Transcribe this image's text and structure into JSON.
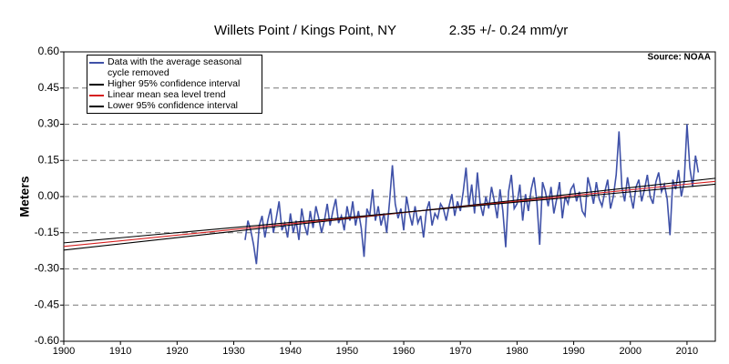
{
  "chart_data": {
    "type": "line",
    "title": "Willets Point / Kings Point, NY",
    "subtitle": "2.35 +/- 0.24 mm/yr",
    "annotation": "Source: NOAA",
    "ylabel": "Meters",
    "xlim": [
      1900,
      2015
    ],
    "xticks": [
      1900,
      1910,
      1920,
      1930,
      1940,
      1950,
      1960,
      1970,
      1980,
      1990,
      2000,
      2010
    ],
    "ylim": [
      -0.6,
      0.6
    ],
    "yticks": [
      {
        "value": -0.6,
        "label": "-0.60"
      },
      {
        "value": -0.45,
        "label": "-0.45"
      },
      {
        "value": -0.3,
        "label": "-0.30"
      },
      {
        "value": -0.15,
        "label": "-0.15"
      },
      {
        "value": 0,
        "label": "0.00"
      },
      {
        "value": 0.15,
        "label": "0.15"
      },
      {
        "value": 0.3,
        "label": "0.30"
      },
      {
        "value": 0.45,
        "label": "0.45"
      },
      {
        "value": 0.6,
        "label": "0.60"
      }
    ],
    "grid": true,
    "series": [
      {
        "name": "Data with the average seasonal cycle removed",
        "color": "#3f51a8",
        "x": [
          1932,
          1932.5,
          1933,
          1933.5,
          1934,
          1934.5,
          1935,
          1935.5,
          1936,
          1936.5,
          1937,
          1937.5,
          1938,
          1938.5,
          1939,
          1939.5,
          1940,
          1940.5,
          1941,
          1941.5,
          1942,
          1942.5,
          1943,
          1943.5,
          1944,
          1944.5,
          1945,
          1945.5,
          1946,
          1946.5,
          1947,
          1947.5,
          1948,
          1948.5,
          1949,
          1949.5,
          1950,
          1950.5,
          1951,
          1951.5,
          1952,
          1952.5,
          1953,
          1953.5,
          1954,
          1954.5,
          1955,
          1955.5,
          1956,
          1956.5,
          1957,
          1957.5,
          1958,
          1958.5,
          1959,
          1959.5,
          1960,
          1960.5,
          1961,
          1961.5,
          1962,
          1962.5,
          1963,
          1963.5,
          1964,
          1964.5,
          1965,
          1965.5,
          1966,
          1966.5,
          1967,
          1967.5,
          1968,
          1968.5,
          1969,
          1969.5,
          1970,
          1970.5,
          1971,
          1971.5,
          1972,
          1972.5,
          1973,
          1973.5,
          1974,
          1974.5,
          1975,
          1975.5,
          1976,
          1976.5,
          1977,
          1977.5,
          1978,
          1978.5,
          1979,
          1979.5,
          1980,
          1980.5,
          1981,
          1981.5,
          1982,
          1982.5,
          1983,
          1983.5,
          1984,
          1984.5,
          1985,
          1985.5,
          1986,
          1986.5,
          1987,
          1987.5,
          1988,
          1988.5,
          1989,
          1989.5,
          1990,
          1990.5,
          1991,
          1991.5,
          1992,
          1992.5,
          1993,
          1993.5,
          1994,
          1994.5,
          1995,
          1995.5,
          1996,
          1996.5,
          1997,
          1997.5,
          1998,
          1998.5,
          1999,
          1999.5,
          2000,
          2000.5,
          2001,
          2001.5,
          2002,
          2002.5,
          2003,
          2003.5,
          2004,
          2004.5,
          2005,
          2005.5,
          2006,
          2006.5,
          2007,
          2007.5,
          2008,
          2008.5,
          2009,
          2009.5,
          2010,
          2010.5,
          2011,
          2011.5,
          2012
        ],
        "values": [
          -0.18,
          -0.1,
          -0.14,
          -0.2,
          -0.28,
          -0.12,
          -0.08,
          -0.17,
          -0.1,
          -0.05,
          -0.15,
          -0.09,
          -0.02,
          -0.14,
          -0.11,
          -0.17,
          -0.07,
          -0.15,
          -0.1,
          -0.18,
          -0.05,
          -0.12,
          -0.16,
          -0.06,
          -0.13,
          -0.04,
          -0.09,
          -0.15,
          -0.1,
          -0.03,
          -0.12,
          -0.06,
          -0.01,
          -0.11,
          -0.08,
          -0.14,
          -0.04,
          -0.1,
          -0.02,
          -0.12,
          -0.06,
          -0.13,
          -0.25,
          -0.05,
          -0.08,
          0.03,
          -0.1,
          -0.04,
          -0.12,
          -0.07,
          -0.15,
          -0.02,
          0.13,
          -0.03,
          -0.09,
          -0.05,
          -0.14,
          0.0,
          -0.07,
          -0.12,
          -0.04,
          -0.11,
          -0.08,
          -0.17,
          -0.06,
          -0.02,
          -0.12,
          -0.07,
          -0.09,
          -0.03,
          -0.05,
          -0.1,
          -0.04,
          0.01,
          -0.08,
          -0.02,
          -0.06,
          0.02,
          0.12,
          -0.04,
          0.05,
          -0.07,
          0.1,
          -0.03,
          -0.08,
          0.0,
          -0.05,
          0.04,
          -0.02,
          -0.09,
          0.03,
          -0.06,
          -0.21,
          0.02,
          0.09,
          -0.05,
          -0.03,
          0.05,
          -0.1,
          0.01,
          -0.06,
          0.03,
          0.08,
          -0.02,
          -0.2,
          0.06,
          0.02,
          -0.04,
          0.04,
          -0.07,
          -0.01,
          0.06,
          -0.09,
          0.0,
          -0.03,
          0.03,
          0.05,
          -0.02,
          0.02,
          -0.06,
          -0.08,
          0.08,
          0.03,
          -0.03,
          0.06,
          -0.01,
          -0.04,
          0.02,
          0.07,
          -0.05,
          0.0,
          0.09,
          0.27,
          0.04,
          -0.02,
          0.08,
          0.01,
          -0.05,
          0.04,
          0.07,
          -0.02,
          0.03,
          0.09,
          0.0,
          -0.03,
          0.06,
          0.1,
          0.02,
          0.05,
          -0.01,
          -0.16,
          0.07,
          0.03,
          0.11,
          0.0,
          0.06,
          0.3,
          0.12,
          0.04,
          0.17,
          0.1
        ]
      },
      {
        "name": "Higher 95% confidence interval",
        "color": "#000000",
        "x": [
          1900,
          2015
        ],
        "values": [
          -0.222,
          0.076
        ]
      },
      {
        "name": "Linear mean sea level trend",
        "color": "#d62020",
        "x": [
          1900,
          2015
        ],
        "values": [
          -0.207,
          0.063
        ]
      },
      {
        "name": "Lower 95% confidence interval",
        "color": "#000000",
        "x": [
          1900,
          2015
        ],
        "values": [
          -0.192,
          0.051
        ]
      }
    ]
  }
}
